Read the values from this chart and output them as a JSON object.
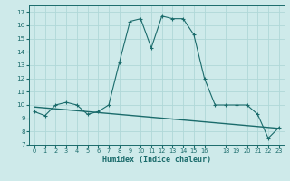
{
  "xlabel": "Humidex (Indice chaleur)",
  "bg_color": "#ceeaea",
  "grid_color": "#b0d8d8",
  "line_color": "#1a6b6b",
  "xlim": [
    -0.5,
    23.5
  ],
  "ylim": [
    7,
    17.5
  ],
  "yticks": [
    7,
    8,
    9,
    10,
    11,
    12,
    13,
    14,
    15,
    16,
    17
  ],
  "xticks": [
    0,
    1,
    2,
    3,
    4,
    5,
    6,
    7,
    8,
    9,
    10,
    11,
    12,
    13,
    14,
    15,
    16,
    18,
    19,
    20,
    21,
    22,
    23
  ],
  "humidex_x": [
    0,
    1,
    2,
    3,
    4,
    5,
    6,
    7,
    8,
    9,
    10,
    11,
    12,
    13,
    14,
    15,
    16,
    17,
    18,
    19,
    20,
    21,
    22,
    23
  ],
  "humidex_y": [
    9.5,
    9.2,
    10.0,
    10.2,
    10.0,
    9.3,
    9.5,
    10.0,
    13.2,
    16.3,
    16.5,
    14.3,
    16.7,
    16.5,
    16.5,
    15.3,
    12.0,
    10.0,
    10.0,
    10.0,
    10.0,
    9.3,
    7.5,
    8.3
  ],
  "trend_x": [
    0,
    1,
    2,
    3,
    4,
    5,
    6,
    7,
    8,
    9,
    10,
    11,
    12,
    13,
    14,
    15,
    16,
    17,
    18,
    19,
    20,
    21,
    22,
    23
  ],
  "trend_y": [
    9.85,
    9.78,
    9.71,
    9.64,
    9.57,
    9.5,
    9.43,
    9.36,
    9.29,
    9.22,
    9.15,
    9.08,
    9.01,
    8.94,
    8.87,
    8.8,
    8.73,
    8.66,
    8.59,
    8.52,
    8.45,
    8.38,
    8.31,
    8.24
  ]
}
